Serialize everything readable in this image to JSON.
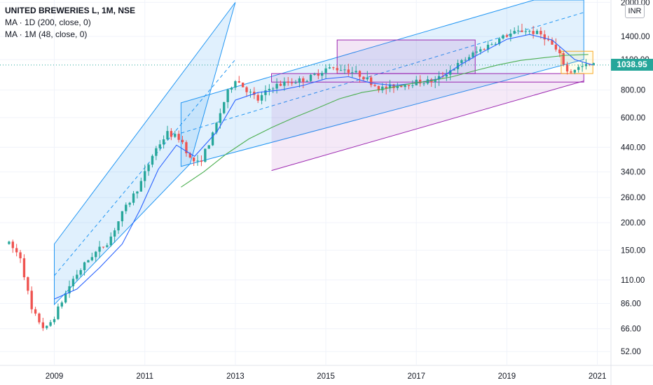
{
  "header": {
    "symbol_line": "UNITED BREWERIES L, 1M, NSE",
    "indicator_1": "MA · 1D (200, close, 0)",
    "indicator_2": "MA · 1M (48, close, 0)"
  },
  "currency": "INR",
  "last_price_label": "1038.95",
  "colors": {
    "up": "#26a69a",
    "down": "#ef5350",
    "ma_fast": "#2962ff",
    "ma_slow": "#4caf50",
    "channel_blue": "#2196f3",
    "channel_purple": "#9c27b0",
    "price_line": "#26a69a"
  },
  "chart_data": {
    "type": "candlestick",
    "scale": "log",
    "y_ticks": [
      52,
      66,
      86,
      110,
      150,
      200,
      260,
      340,
      440,
      600,
      800,
      1100,
      1400,
      2000
    ],
    "y_tick_labels": [
      "52.00",
      "66.00",
      "86.00",
      "110.00",
      "150.00",
      "200.00",
      "260.00",
      "340.00",
      "440.00",
      "600.00",
      "800.00",
      "1100.00",
      "1400.00",
      "2000.00"
    ],
    "x_ticks": [
      "2009",
      "2011",
      "2013",
      "2015",
      "2017",
      "2019",
      "2021"
    ],
    "x_range": [
      2007.8,
      2021.3
    ],
    "y_range": [
      45,
      2050
    ],
    "last_price": 1038.95,
    "anchors": [
      [
        2008.0,
        160
      ],
      [
        2008.25,
        140
      ],
      [
        2008.5,
        80
      ],
      [
        2008.8,
        65
      ],
      [
        2009.0,
        75
      ],
      [
        2009.4,
        110
      ],
      [
        2009.8,
        140
      ],
      [
        2010.2,
        165
      ],
      [
        2010.5,
        220
      ],
      [
        2010.9,
        300
      ],
      [
        2011.2,
        420
      ],
      [
        2011.5,
        510
      ],
      [
        2011.8,
        480
      ],
      [
        2012.0,
        390
      ],
      [
        2012.2,
        370
      ],
      [
        2012.5,
        500
      ],
      [
        2012.8,
        760
      ],
      [
        2013.0,
        900
      ],
      [
        2013.2,
        820
      ],
      [
        2013.5,
        720
      ],
      [
        2013.8,
        830
      ],
      [
        2014.2,
        870
      ],
      [
        2014.6,
        900
      ],
      [
        2015.0,
        1000
      ],
      [
        2015.4,
        1000
      ],
      [
        2015.8,
        930
      ],
      [
        2016.2,
        810
      ],
      [
        2016.6,
        840
      ],
      [
        2017.0,
        870
      ],
      [
        2017.4,
        880
      ],
      [
        2017.8,
        1000
      ],
      [
        2018.2,
        1150
      ],
      [
        2018.6,
        1280
      ],
      [
        2019.0,
        1420
      ],
      [
        2019.4,
        1500
      ],
      [
        2019.8,
        1420
      ],
      [
        2020.0,
        1280
      ],
      [
        2020.2,
        1120
      ],
      [
        2020.35,
        950
      ],
      [
        2020.5,
        1000
      ],
      [
        2020.75,
        1030
      ],
      [
        2020.92,
        1038.95
      ]
    ],
    "ma_48m": [
      [
        2011.8,
        290
      ],
      [
        2012.3,
        340
      ],
      [
        2012.8,
        410
      ],
      [
        2013.3,
        480
      ],
      [
        2013.8,
        540
      ],
      [
        2014.3,
        600
      ],
      [
        2014.8,
        660
      ],
      [
        2015.3,
        730
      ],
      [
        2015.8,
        780
      ],
      [
        2016.3,
        810
      ],
      [
        2016.8,
        850
      ],
      [
        2017.3,
        880
      ],
      [
        2017.8,
        920
      ],
      [
        2018.3,
        980
      ],
      [
        2018.8,
        1040
      ],
      [
        2019.3,
        1090
      ],
      [
        2019.8,
        1120
      ],
      [
        2020.3,
        1150
      ],
      [
        2020.8,
        1160
      ]
    ],
    "ma_200d": [
      [
        2009.0,
        90
      ],
      [
        2009.5,
        100
      ],
      [
        2010.0,
        125
      ],
      [
        2010.5,
        160
      ],
      [
        2010.9,
        230
      ],
      [
        2011.3,
        350
      ],
      [
        2011.7,
        450
      ],
      [
        2012.1,
        400
      ],
      [
        2012.6,
        520
      ],
      [
        2013.0,
        720
      ],
      [
        2013.5,
        780
      ],
      [
        2014.0,
        800
      ],
      [
        2014.5,
        840
      ],
      [
        2015.0,
        900
      ],
      [
        2015.5,
        920
      ],
      [
        2016.0,
        860
      ],
      [
        2016.5,
        840
      ],
      [
        2017.0,
        860
      ],
      [
        2017.5,
        900
      ],
      [
        2018.0,
        1050
      ],
      [
        2018.5,
        1200
      ],
      [
        2019.0,
        1360
      ],
      [
        2019.5,
        1430
      ],
      [
        2020.0,
        1350
      ],
      [
        2020.5,
        1100
      ],
      [
        2020.9,
        1040
      ]
    ]
  }
}
